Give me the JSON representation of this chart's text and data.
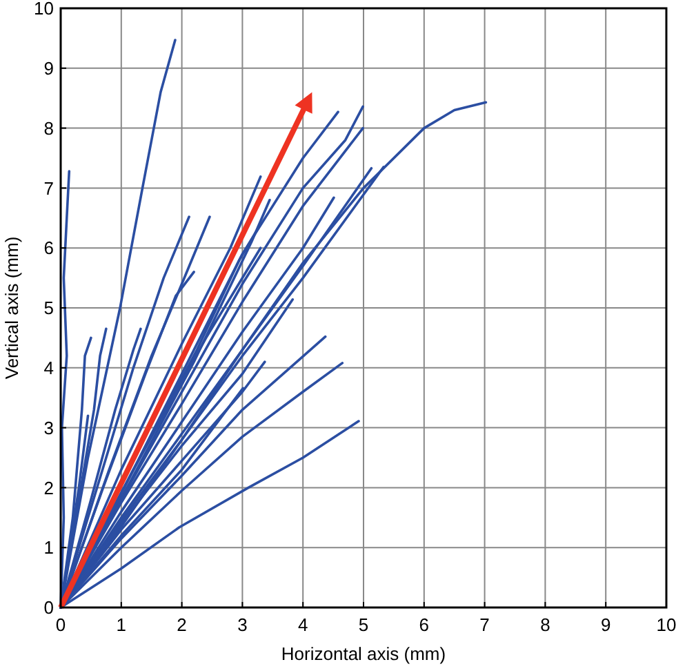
{
  "chart_data": {
    "type": "line",
    "xlabel": "Horizontal axis (mm)",
    "ylabel": "Vertical axis (mm)",
    "xlim": [
      0,
      10
    ],
    "ylim": [
      0,
      10
    ],
    "xticks": [
      0,
      1,
      2,
      3,
      4,
      5,
      6,
      7,
      8,
      9,
      10
    ],
    "yticks": [
      0,
      1,
      2,
      3,
      4,
      5,
      6,
      7,
      8,
      9,
      10
    ],
    "grid": true,
    "line_style": "solid",
    "series": [
      {
        "color": "#2b4ea2",
        "x": [
          0,
          0.05,
          0.02,
          0.1,
          0.05,
          0.1,
          0.14
        ],
        "values": [
          0,
          1.5,
          3,
          4.2,
          5.5,
          6.5,
          7.28
        ]
      },
      {
        "color": "#2b4ea2",
        "x": [
          0,
          0.45,
          0.98,
          1.35,
          1.65,
          1.89
        ],
        "values": [
          0,
          2.5,
          5,
          7,
          8.6,
          9.47
        ]
      },
      {
        "color": "#2b4ea2",
        "x": [
          0,
          0.2,
          0.35,
          0.4,
          0.5
        ],
        "values": [
          0,
          1.5,
          3.3,
          4.2,
          4.5
        ]
      },
      {
        "color": "#2b4ea2",
        "x": [
          0,
          0.3,
          0.55,
          0.65,
          0.75
        ],
        "values": [
          0,
          1.8,
          3.3,
          4.2,
          4.65
        ]
      },
      {
        "color": "#2b4ea2",
        "x": [
          0,
          0.3,
          0.45
        ],
        "values": [
          0,
          2,
          3.2
        ]
      },
      {
        "color": "#2b4ea2",
        "x": [
          0,
          0.5,
          0.9,
          1.2,
          1.32
        ],
        "values": [
          0,
          1.8,
          3.3,
          4.3,
          4.65
        ]
      },
      {
        "color": "#2b4ea2",
        "x": [
          0,
          0.6,
          1.2,
          1.7,
          2.12
        ],
        "values": [
          0,
          2,
          4,
          5.5,
          6.52
        ]
      },
      {
        "color": "#2b4ea2",
        "x": [
          0,
          0.7,
          1.4,
          1.9,
          2.2
        ],
        "values": [
          0,
          2,
          3.9,
          5.2,
          5.6
        ]
      },
      {
        "color": "#2b4ea2",
        "x": [
          0,
          0.8,
          1.5,
          2,
          2.46
        ],
        "values": [
          0,
          2.3,
          4.2,
          5.4,
          6.52
        ]
      },
      {
        "color": "#2b4ea2",
        "x": [
          0,
          1.15,
          2.25,
          2.95,
          3.3
        ],
        "values": [
          0,
          2.2,
          4.3,
          5.8,
          6.4
        ]
      },
      {
        "color": "#2b4ea2",
        "x": [
          0,
          1,
          2,
          2.8,
          3.3
        ],
        "values": [
          0,
          2.3,
          4.4,
          6,
          7.19
        ]
      },
      {
        "color": "#2b4ea2",
        "x": [
          0,
          1.15,
          2.2,
          3.15,
          3.45
        ],
        "values": [
          0,
          2.1,
          4.1,
          6.1,
          6.8
        ]
      },
      {
        "color": "#2b4ea2",
        "x": [
          0,
          1.2,
          2.4,
          3.3
        ],
        "values": [
          0,
          2.3,
          4.5,
          6
        ]
      },
      {
        "color": "#2b4ea2",
        "x": [
          0,
          1,
          2,
          3,
          4,
          4.58
        ],
        "values": [
          0,
          1.9,
          3.9,
          5.9,
          7.5,
          8.27
        ]
      },
      {
        "color": "#2b4ea2",
        "x": [
          0,
          1,
          2,
          3,
          4,
          4.7,
          4.99
        ],
        "values": [
          0,
          1.8,
          3.6,
          5.4,
          7,
          7.8,
          8.36
        ]
      },
      {
        "color": "#2b4ea2",
        "x": [
          0,
          1,
          2,
          3,
          4,
          4.99
        ],
        "values": [
          0,
          1.75,
          3.4,
          5.1,
          6.7,
          8
        ]
      },
      {
        "color": "#2b4ea2",
        "x": [
          0,
          1,
          2,
          3,
          4,
          4.51
        ],
        "values": [
          0,
          1.6,
          3.1,
          4.6,
          6,
          6.84
        ]
      },
      {
        "color": "#2b4ea2",
        "x": [
          0,
          1,
          2,
          3,
          4,
          5.13
        ],
        "values": [
          0,
          1.5,
          2.9,
          4.3,
          5.7,
          7.33
        ]
      },
      {
        "color": "#2b4ea2",
        "x": [
          0,
          1,
          2,
          3,
          4,
          5.33
        ],
        "values": [
          0,
          1.45,
          2.8,
          4.2,
          5.5,
          7.35
        ]
      },
      {
        "color": "#2b4ea2",
        "x": [
          0,
          1,
          2,
          3,
          4,
          5,
          6,
          6.5,
          7.02
        ],
        "values": [
          0,
          1.35,
          2.8,
          4.3,
          5.75,
          7,
          8,
          8.3,
          8.43
        ]
      },
      {
        "color": "#2b4ea2",
        "x": [
          0,
          1,
          2,
          3,
          3.83
        ],
        "values": [
          0,
          1.4,
          2.7,
          3.9,
          5.14
        ]
      },
      {
        "color": "#2b4ea2",
        "x": [
          0,
          1,
          2,
          3,
          3.37
        ],
        "values": [
          0,
          1.3,
          2.45,
          3.6,
          4.1
        ]
      },
      {
        "color": "#2b4ea2",
        "x": [
          0,
          1,
          2,
          3.01
        ],
        "values": [
          0,
          1.2,
          2.3,
          3.66
        ]
      },
      {
        "color": "#2b4ea2",
        "x": [
          0,
          1,
          2,
          3,
          4.37
        ],
        "values": [
          0,
          1.15,
          2.2,
          3.3,
          4.52
        ]
      },
      {
        "color": "#2b4ea2",
        "x": [
          0,
          1,
          2,
          3,
          4,
          4.65
        ],
        "values": [
          0,
          1,
          1.95,
          2.85,
          3.6,
          4.08
        ]
      },
      {
        "color": "#2b4ea2",
        "x": [
          0,
          1,
          1.96,
          3.1,
          4,
          4.92
        ],
        "values": [
          0,
          0.65,
          1.34,
          2,
          2.5,
          3.11
        ]
      }
    ]
  }
}
